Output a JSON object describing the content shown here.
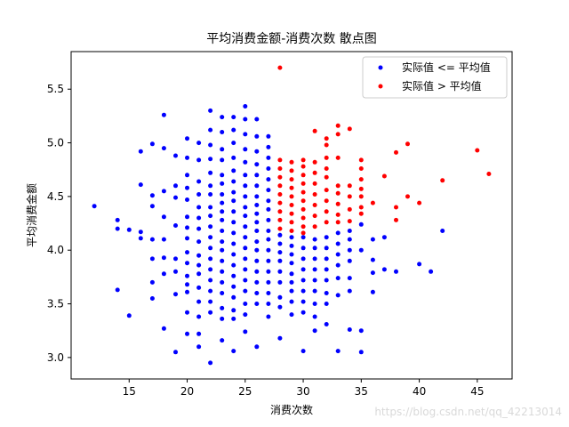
{
  "chart_data": {
    "type": "scatter",
    "title": "平均消费金额-消费次数 散点图",
    "xlabel": "消费次数",
    "ylabel": "平均消费金额",
    "xlim": [
      10,
      48
    ],
    "ylim": [
      2.8,
      5.85
    ],
    "xticks": [
      15,
      20,
      25,
      30,
      35,
      40,
      45
    ],
    "yticks": [
      3.0,
      3.5,
      4.0,
      4.5,
      5.0,
      5.5
    ],
    "xtick_labels": [
      "15",
      "20",
      "25",
      "30",
      "35",
      "40",
      "45"
    ],
    "ytick_labels": [
      "3.0",
      "3.5",
      "4.0",
      "4.5",
      "5.0",
      "5.5"
    ],
    "grid": false,
    "legend_position": "top-right",
    "series": [
      {
        "name": "实际值 <= 平均值",
        "color": "#0000ff",
        "points": [
          [
            12,
            4.41
          ],
          [
            14,
            4.28
          ],
          [
            14,
            4.2
          ],
          [
            14,
            3.63
          ],
          [
            15,
            4.19
          ],
          [
            15,
            3.39
          ],
          [
            16,
            4.92
          ],
          [
            16,
            4.61
          ],
          [
            16,
            4.17
          ],
          [
            16,
            4.11
          ],
          [
            17,
            4.99
          ],
          [
            17,
            4.51
          ],
          [
            17,
            4.41
          ],
          [
            17,
            4.1
          ],
          [
            17,
            3.92
          ],
          [
            17,
            3.7
          ],
          [
            17,
            3.55
          ],
          [
            18,
            5.26
          ],
          [
            18,
            4.95
          ],
          [
            18,
            4.55
          ],
          [
            18,
            4.31
          ],
          [
            18,
            4.1
          ],
          [
            18,
            3.93
          ],
          [
            18,
            3.78
          ],
          [
            18,
            3.27
          ],
          [
            19,
            4.88
          ],
          [
            19,
            4.6
          ],
          [
            19,
            4.49
          ],
          [
            19,
            4.23
          ],
          [
            19,
            3.92
          ],
          [
            19,
            3.8
          ],
          [
            19,
            3.59
          ],
          [
            19,
            3.05
          ],
          [
            20,
            5.04
          ],
          [
            20,
            4.86
          ],
          [
            20,
            4.7
          ],
          [
            20,
            4.58
          ],
          [
            20,
            4.47
          ],
          [
            20,
            4.31
          ],
          [
            20,
            4.21
          ],
          [
            20,
            4.11
          ],
          [
            20,
            3.98
          ],
          [
            20,
            3.88
          ],
          [
            20,
            3.76
          ],
          [
            20,
            3.68
          ],
          [
            20,
            3.61
          ],
          [
            20,
            3.42
          ],
          [
            20,
            3.22
          ],
          [
            21,
            5.0
          ],
          [
            21,
            4.84
          ],
          [
            21,
            4.64
          ],
          [
            21,
            4.52
          ],
          [
            21,
            4.4
          ],
          [
            21,
            4.3
          ],
          [
            21,
            4.2
          ],
          [
            21,
            4.08
          ],
          [
            21,
            3.95
          ],
          [
            21,
            3.86
          ],
          [
            21,
            3.78
          ],
          [
            21,
            3.65
          ],
          [
            21,
            3.52
          ],
          [
            21,
            3.38
          ],
          [
            21,
            3.22
          ],
          [
            21,
            3.1
          ],
          [
            22,
            5.3
          ],
          [
            22,
            5.12
          ],
          [
            22,
            4.98
          ],
          [
            22,
            4.85
          ],
          [
            22,
            4.72
          ],
          [
            22,
            4.6
          ],
          [
            22,
            4.52
          ],
          [
            22,
            4.4
          ],
          [
            22,
            4.32
          ],
          [
            22,
            4.22
          ],
          [
            22,
            4.12
          ],
          [
            22,
            4.02
          ],
          [
            22,
            3.92
          ],
          [
            22,
            3.82
          ],
          [
            22,
            3.72
          ],
          [
            22,
            3.62
          ],
          [
            22,
            3.52
          ],
          [
            22,
            3.42
          ],
          [
            22,
            2.95
          ],
          [
            23,
            5.24
          ],
          [
            23,
            5.1
          ],
          [
            23,
            4.94
          ],
          [
            23,
            4.84
          ],
          [
            23,
            4.7
          ],
          [
            23,
            4.62
          ],
          [
            23,
            4.52
          ],
          [
            23,
            4.44
          ],
          [
            23,
            4.36
          ],
          [
            23,
            4.28
          ],
          [
            23,
            4.18
          ],
          [
            23,
            4.08
          ],
          [
            23,
            4.0
          ],
          [
            23,
            3.9
          ],
          [
            23,
            3.8
          ],
          [
            23,
            3.7
          ],
          [
            23,
            3.6
          ],
          [
            23,
            3.46
          ],
          [
            23,
            3.36
          ],
          [
            23,
            3.16
          ],
          [
            24,
            5.24
          ],
          [
            24,
            5.12
          ],
          [
            24,
            5.0
          ],
          [
            24,
            4.86
          ],
          [
            24,
            4.74
          ],
          [
            24,
            4.64
          ],
          [
            24,
            4.54
          ],
          [
            24,
            4.46
          ],
          [
            24,
            4.36
          ],
          [
            24,
            4.26
          ],
          [
            24,
            4.16
          ],
          [
            24,
            4.06
          ],
          [
            24,
            3.96
          ],
          [
            24,
            3.86
          ],
          [
            24,
            3.76
          ],
          [
            24,
            3.66
          ],
          [
            24,
            3.56
          ],
          [
            24,
            3.44
          ],
          [
            24,
            3.36
          ],
          [
            24,
            3.06
          ],
          [
            25,
            5.34
          ],
          [
            25,
            5.22
          ],
          [
            25,
            5.08
          ],
          [
            25,
            4.94
          ],
          [
            25,
            4.82
          ],
          [
            25,
            4.7
          ],
          [
            25,
            4.6
          ],
          [
            25,
            4.5
          ],
          [
            25,
            4.4
          ],
          [
            25,
            4.32
          ],
          [
            25,
            4.22
          ],
          [
            25,
            4.12
          ],
          [
            25,
            4.02
          ],
          [
            25,
            3.92
          ],
          [
            25,
            3.82
          ],
          [
            25,
            3.72
          ],
          [
            25,
            3.62
          ],
          [
            25,
            3.5
          ],
          [
            25,
            3.4
          ],
          [
            25,
            3.24
          ],
          [
            26,
            5.22
          ],
          [
            26,
            5.06
          ],
          [
            26,
            4.92
          ],
          [
            26,
            4.8
          ],
          [
            26,
            4.7
          ],
          [
            26,
            4.6
          ],
          [
            26,
            4.5
          ],
          [
            26,
            4.42
          ],
          [
            26,
            4.34
          ],
          [
            26,
            4.26
          ],
          [
            26,
            4.18
          ],
          [
            26,
            4.08
          ],
          [
            26,
            4.0
          ],
          [
            26,
            3.9
          ],
          [
            26,
            3.8
          ],
          [
            26,
            3.7
          ],
          [
            26,
            3.6
          ],
          [
            26,
            3.5
          ],
          [
            26,
            3.1
          ],
          [
            27,
            5.06
          ],
          [
            27,
            4.96
          ],
          [
            27,
            4.86
          ],
          [
            27,
            4.76
          ],
          [
            27,
            4.66
          ],
          [
            27,
            4.56
          ],
          [
            27,
            4.46
          ],
          [
            27,
            4.38
          ],
          [
            27,
            4.28
          ],
          [
            27,
            4.18
          ],
          [
            27,
            4.1
          ],
          [
            27,
            4.0
          ],
          [
            27,
            3.9
          ],
          [
            27,
            3.8
          ],
          [
            27,
            3.7
          ],
          [
            27,
            3.6
          ],
          [
            27,
            3.5
          ],
          [
            27,
            3.38
          ],
          [
            28,
            4.14
          ],
          [
            28,
            4.06
          ],
          [
            28,
            3.98
          ],
          [
            28,
            3.9
          ],
          [
            28,
            3.8
          ],
          [
            28,
            3.7
          ],
          [
            28,
            3.56
          ],
          [
            28,
            3.47
          ],
          [
            28,
            3.18
          ],
          [
            29,
            4.12
          ],
          [
            29,
            4.04
          ],
          [
            29,
            3.96
          ],
          [
            29,
            3.88
          ],
          [
            29,
            3.78
          ],
          [
            29,
            3.7
          ],
          [
            29,
            3.62
          ],
          [
            29,
            3.52
          ],
          [
            29,
            3.4
          ],
          [
            30,
            4.12
          ],
          [
            30,
            4.02
          ],
          [
            30,
            3.92
          ],
          [
            30,
            3.82
          ],
          [
            30,
            3.72
          ],
          [
            30,
            3.62
          ],
          [
            30,
            3.52
          ],
          [
            30,
            3.42
          ],
          [
            30,
            3.06
          ],
          [
            31,
            4.1
          ],
          [
            31,
            4.02
          ],
          [
            31,
            3.92
          ],
          [
            31,
            3.82
          ],
          [
            31,
            3.72
          ],
          [
            31,
            3.62
          ],
          [
            31,
            3.5
          ],
          [
            31,
            3.38
          ],
          [
            31,
            3.25
          ],
          [
            32,
            4.12
          ],
          [
            32,
            4.02
          ],
          [
            32,
            3.92
          ],
          [
            32,
            3.82
          ],
          [
            32,
            3.72
          ],
          [
            32,
            3.6
          ],
          [
            32,
            3.5
          ],
          [
            32,
            3.31
          ],
          [
            33,
            4.16
          ],
          [
            33,
            4.06
          ],
          [
            33,
            3.96
          ],
          [
            33,
            3.86
          ],
          [
            33,
            3.74
          ],
          [
            33,
            3.58
          ],
          [
            33,
            3.06
          ],
          [
            34,
            4.18
          ],
          [
            34,
            4.1
          ],
          [
            34,
            4.0
          ],
          [
            34,
            3.9
          ],
          [
            34,
            3.74
          ],
          [
            34,
            3.62
          ],
          [
            34,
            3.26
          ],
          [
            35,
            4.24
          ],
          [
            35,
            4.0
          ],
          [
            35,
            3.25
          ],
          [
            35,
            3.05
          ],
          [
            36,
            4.1
          ],
          [
            36,
            3.91
          ],
          [
            36,
            3.79
          ],
          [
            36,
            3.61
          ],
          [
            37,
            4.12
          ],
          [
            37,
            3.82
          ],
          [
            38,
            3.8
          ],
          [
            40,
            3.87
          ],
          [
            41,
            3.8
          ],
          [
            42,
            4.18
          ]
        ]
      },
      {
        "name": "实际值 >  平均值",
        "color": "#ff0000",
        "points": [
          [
            28,
            5.7
          ],
          [
            28,
            4.84
          ],
          [
            28,
            4.76
          ],
          [
            28,
            4.68
          ],
          [
            28,
            4.6
          ],
          [
            28,
            4.52
          ],
          [
            28,
            4.44
          ],
          [
            28,
            4.36
          ],
          [
            28,
            4.28
          ],
          [
            28,
            4.2
          ],
          [
            29,
            4.82
          ],
          [
            29,
            4.74
          ],
          [
            29,
            4.66
          ],
          [
            29,
            4.58
          ],
          [
            29,
            4.5
          ],
          [
            29,
            4.42
          ],
          [
            29,
            4.34
          ],
          [
            29,
            4.26
          ],
          [
            29,
            4.18
          ],
          [
            30,
            4.84
          ],
          [
            30,
            4.78
          ],
          [
            30,
            4.7
          ],
          [
            30,
            4.62
          ],
          [
            30,
            4.54
          ],
          [
            30,
            4.46
          ],
          [
            30,
            4.38
          ],
          [
            30,
            4.3
          ],
          [
            30,
            4.22
          ],
          [
            30,
            4.16
          ],
          [
            31,
            5.11
          ],
          [
            31,
            4.82
          ],
          [
            31,
            4.72
          ],
          [
            31,
            4.62
          ],
          [
            31,
            4.52
          ],
          [
            31,
            4.42
          ],
          [
            31,
            4.32
          ],
          [
            31,
            4.22
          ],
          [
            32,
            5.04
          ],
          [
            32,
            4.98
          ],
          [
            32,
            4.86
          ],
          [
            32,
            4.76
          ],
          [
            32,
            4.68
          ],
          [
            32,
            4.56
          ],
          [
            32,
            4.46
          ],
          [
            32,
            4.36
          ],
          [
            32,
            4.26
          ],
          [
            33,
            5.16
          ],
          [
            33,
            5.08
          ],
          [
            33,
            4.86
          ],
          [
            33,
            4.6
          ],
          [
            33,
            4.53
          ],
          [
            33,
            4.43
          ],
          [
            33,
            4.33
          ],
          [
            33,
            4.26
          ],
          [
            34,
            5.13
          ],
          [
            34,
            4.6
          ],
          [
            34,
            4.5
          ],
          [
            34,
            4.38
          ],
          [
            34,
            4.27
          ],
          [
            35,
            4.84
          ],
          [
            35,
            4.76
          ],
          [
            35,
            4.66
          ],
          [
            35,
            4.57
          ],
          [
            35,
            4.5
          ],
          [
            35,
            4.4
          ],
          [
            35,
            4.34
          ],
          [
            36,
            4.44
          ],
          [
            37,
            4.69
          ],
          [
            38,
            4.91
          ],
          [
            38,
            4.4
          ],
          [
            38,
            4.28
          ],
          [
            39,
            4.99
          ],
          [
            39,
            4.5
          ],
          [
            40,
            4.44
          ],
          [
            42,
            4.65
          ],
          [
            45,
            4.93
          ],
          [
            46,
            4.71
          ]
        ]
      }
    ]
  },
  "watermark": "https://blog.csdn.net/qq_42213014"
}
